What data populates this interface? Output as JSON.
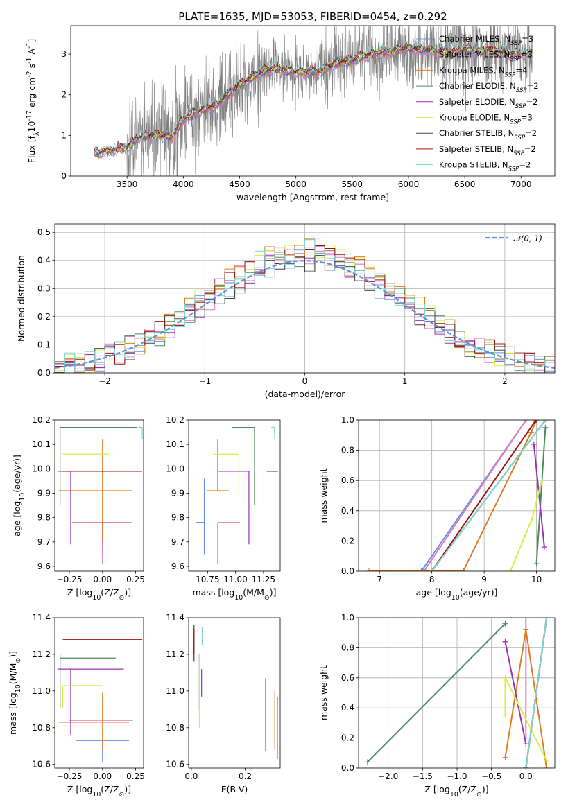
{
  "colors": {
    "chabrier_miles": "#6a8fe0",
    "salpeter_miles": "#e07bbf",
    "kroupa_miles": "#e07b20",
    "chabrier_elodie": "#4f8a5f",
    "salpeter_elodie": "#9b30b5",
    "kroupa_elodie": "#d4ee4a",
    "chabrier_stelib": "#444444",
    "salpeter_stelib": "#a01010",
    "kroupa_stelib": "#7fd6d6",
    "data": "#808080"
  },
  "chart_data": [
    {
      "id": "spectrum",
      "type": "line",
      "title": "PLATE=1635, MJD=53053, FIBERID=0454, z=0.292",
      "xlabel": "wavelength [Angstrom, rest frame]",
      "ylabel": "Flux [f$_\\lambda$10$^{-17}$ erg cm$^{-2}$ s$^{-1}$ A$^{-1}$]",
      "xlim": [
        3000,
        7300
      ],
      "ylim": [
        0,
        3.7
      ],
      "xticks": [
        3500,
        4000,
        4500,
        5000,
        5500,
        6000,
        6500,
        7000
      ],
      "yticks": [
        0,
        1,
        2,
        3
      ],
      "legend_position": "top-right",
      "legend": [
        "Chabrier MILES, N_SSP=3",
        "Salpeter MILES, N_SSP=3",
        "Kroupa MILES, N_SSP=4",
        "Chabrier ELODIE, N_SSP=2",
        "Salpeter ELODIE, N_SSP=2",
        "Kroupa ELODIE, N_SSP=3",
        "Chabrier STELIB, N_SSP=2",
        "Salpeter STELIB, N_SSP=2",
        "Kroupa STELIB, N_SSP=2"
      ],
      "continuum": {
        "x": [
          3200,
          3400,
          3500,
          3600,
          3700,
          3800,
          3900,
          4000,
          4100,
          4200,
          4300,
          4400,
          4500,
          4600,
          4700,
          4800,
          4900,
          5000,
          5100,
          5200,
          5300,
          5400,
          5500,
          5600,
          5700,
          5800,
          5900,
          6000,
          6100,
          6200,
          6300,
          6400,
          6500,
          6600,
          6700,
          6800,
          6900,
          7000,
          7100
        ],
        "y": [
          0.55,
          0.65,
          0.7,
          0.95,
          1.0,
          1.0,
          0.95,
          1.4,
          1.55,
          1.65,
          1.75,
          2.0,
          2.25,
          2.4,
          2.55,
          2.65,
          2.6,
          2.55,
          2.55,
          2.55,
          2.7,
          2.8,
          2.85,
          2.95,
          3.0,
          3.05,
          3.1,
          3.15,
          3.1,
          3.1,
          3.05,
          3.05,
          3.1,
          3.05,
          3.1,
          3.05,
          3.0,
          3.0,
          3.0
        ]
      }
    },
    {
      "id": "residuals",
      "type": "line",
      "xlabel": "(data-model)/error",
      "ylabel": "Normed distribution",
      "xlim": [
        -2.5,
        2.5
      ],
      "ylim": [
        0,
        0.53
      ],
      "xticks": [
        -2,
        -1,
        0,
        1,
        2
      ],
      "yticks": [
        0.0,
        0.1,
        0.2,
        0.3,
        0.4,
        0.5
      ],
      "grid": true,
      "legend_position": "top-right",
      "legend": [
        "$\\mathcal{N}(0,1)$"
      ],
      "gaussian": {
        "mean": 0,
        "sigma": 1
      }
    },
    {
      "id": "age_vs_Z",
      "type": "scatter",
      "xlabel": "Z [log$_{10}$(Z/Z$_\\odot$)]",
      "ylabel": "age  [log$_{10}$(age/yr)]",
      "xlim": [
        -0.36,
        0.31
      ],
      "ylim": [
        9.58,
        10.2
      ],
      "xticks": [
        -0.25,
        0.0,
        0.25
      ],
      "yticks": [
        9.6,
        9.7,
        9.8,
        9.9,
        10.0,
        10.1,
        10.2
      ],
      "errorbars": [
        {
          "model": "chabrier_miles",
          "x": 0.0,
          "y": 9.78,
          "xerr": [
            0.2,
            0.2
          ],
          "yerr": [
            0.13,
            0.0
          ]
        },
        {
          "model": "salpeter_miles",
          "x": 0.0,
          "y": 9.78,
          "xerr": [
            0.23,
            0.22
          ],
          "yerr": [
            0.17,
            0.0
          ]
        },
        {
          "model": "kroupa_miles",
          "x": 0.0,
          "y": 9.91,
          "xerr": [
            0.33,
            0.22
          ],
          "yerr": [
            0.2,
            0.21
          ]
        },
        {
          "model": "chabrier_elodie",
          "x": -0.32,
          "y": 10.17,
          "xerr": [
            0.0,
            0.58
          ],
          "yerr": [
            0.32,
            0.0
          ]
        },
        {
          "model": "salpeter_elodie",
          "x": -0.24,
          "y": 9.99,
          "xerr": [
            0.1,
            0.45
          ],
          "yerr": [
            0.3,
            0.0
          ]
        },
        {
          "model": "kroupa_elodie",
          "x": 0.0,
          "y": 10.06,
          "xerr": [
            0.3,
            0.05
          ],
          "yerr": [
            0.0,
            0.0
          ]
        },
        {
          "model": "chabrier_stelib",
          "x": 0.3,
          "y": 10.17,
          "xerr": [
            0.02,
            0.0
          ],
          "yerr": [
            0.0,
            0.0
          ]
        },
        {
          "model": "salpeter_stelib",
          "x": 0.0,
          "y": 9.99,
          "xerr": [
            0.3,
            0.3
          ],
          "yerr": [
            0.0,
            0.0
          ]
        },
        {
          "model": "kroupa_stelib",
          "x": 0.3,
          "y": 10.17,
          "xerr": [
            0.03,
            0.0
          ],
          "yerr": [
            0.05,
            0.0
          ]
        }
      ]
    },
    {
      "id": "age_vs_mass",
      "type": "scatter",
      "xlabel": "mass [log$_{10}$(M/M$_\\odot$)]",
      "ylabel": "",
      "xlim": [
        10.58,
        11.4
      ],
      "ylim": [
        9.58,
        10.2
      ],
      "xticks": [
        10.75,
        11.0,
        11.25
      ],
      "yticks": [
        9.6,
        9.7,
        9.8,
        9.9,
        10.0,
        10.1,
        10.2
      ],
      "errorbars": [
        {
          "model": "chabrier_miles",
          "x": 10.72,
          "y": 9.78,
          "xerr": [
            0.07,
            0.0
          ],
          "yerr": [
            0.13,
            0.18
          ]
        },
        {
          "model": "salpeter_miles",
          "x": 10.84,
          "y": 9.78,
          "xerr": [
            0.0,
            0.2
          ],
          "yerr": [
            0.17,
            0.0
          ]
        },
        {
          "model": "kroupa_miles",
          "x": 10.84,
          "y": 9.91,
          "xerr": [
            0.1,
            0.1
          ],
          "yerr": [
            0.0,
            0.21
          ]
        },
        {
          "model": "chabrier_elodie",
          "x": 11.17,
          "y": 10.17,
          "xerr": [
            0.2,
            0.0
          ],
          "yerr": [
            0.32,
            0.0
          ]
        },
        {
          "model": "salpeter_elodie",
          "x": 11.12,
          "y": 9.99,
          "xerr": [
            0.27,
            0.0
          ],
          "yerr": [
            0.3,
            0.0
          ]
        },
        {
          "model": "kroupa_elodie",
          "x": 11.03,
          "y": 10.06,
          "xerr": [
            0.22,
            0.0
          ],
          "yerr": [
            0.16,
            0.0
          ]
        },
        {
          "model": "chabrier_stelib",
          "x": 11.35,
          "y": 10.17,
          "xerr": [
            0.02,
            0.0
          ],
          "yerr": [
            0.02,
            0.0
          ]
        },
        {
          "model": "salpeter_stelib",
          "x": 11.28,
          "y": 9.99,
          "xerr": [
            0.0,
            0.1
          ],
          "yerr": [
            0.0,
            0.0
          ]
        },
        {
          "model": "kroupa_stelib",
          "x": 11.35,
          "y": 10.17,
          "xerr": [
            0.03,
            0.0
          ],
          "yerr": [
            0.05,
            0.0
          ]
        }
      ]
    },
    {
      "id": "weight_vs_age",
      "type": "line",
      "xlabel": "age  [log$_{10}$(age/yr)]",
      "ylabel": "mass weight",
      "xlim": [
        6.6,
        10.35
      ],
      "ylim": [
        0,
        1.0
      ],
      "xticks": [
        7,
        8,
        9,
        10
      ],
      "yticks": [
        0.0,
        0.2,
        0.4,
        0.6,
        0.8,
        1.0
      ],
      "grid": true,
      "series": [
        {
          "model": "chabrier_miles",
          "x": [
            7.8,
            9.8
          ],
          "y": [
            0.0,
            1.0
          ]
        },
        {
          "model": "salpeter_miles",
          "x": [
            7.85,
            9.8
          ],
          "y": [
            0.0,
            1.0
          ]
        },
        {
          "model": "kroupa_miles",
          "x": [
            6.8,
            8.6,
            9.9,
            10.0
          ],
          "y": [
            0.0,
            0.0,
            0.92,
            1.0
          ]
        },
        {
          "model": "chabrier_elodie",
          "x": [
            10.0,
            10.17
          ],
          "y": [
            0.05,
            0.95
          ]
        },
        {
          "model": "salpeter_elodie",
          "x": [
            9.95,
            10.15
          ],
          "y": [
            0.84,
            0.16
          ]
        },
        {
          "model": "kroupa_elodie",
          "x": [
            9.5,
            9.92,
            10.1
          ],
          "y": [
            0.0,
            0.35,
            0.6
          ]
        },
        {
          "model": "chabrier_stelib",
          "x": [
            8.0,
            10.17
          ],
          "y": [
            0.0,
            1.0
          ]
        },
        {
          "model": "salpeter_stelib",
          "x": [
            8.0,
            9.99
          ],
          "y": [
            0.0,
            1.0
          ]
        },
        {
          "model": "kroupa_stelib",
          "x": [
            8.0,
            10.17
          ],
          "y": [
            0.0,
            1.0
          ]
        }
      ]
    },
    {
      "id": "mass_vs_Z",
      "type": "scatter",
      "xlabel": "Z [log$_{10}$(Z/Z$_\\odot$)]",
      "ylabel": "mass [log$_{10}$(M/M$_\\odot$)]",
      "xlim": [
        -0.36,
        0.31
      ],
      "ylim": [
        10.58,
        11.4
      ],
      "xticks": [
        -0.25,
        0.0,
        0.25
      ],
      "yticks": [
        10.6,
        10.8,
        11.0,
        11.2,
        11.4
      ],
      "errorbars": [
        {
          "model": "chabrier_miles",
          "x": 0.0,
          "y": 10.73,
          "xerr": [
            0.2,
            0.2
          ],
          "yerr": [
            0.12,
            0.0
          ]
        },
        {
          "model": "salpeter_miles",
          "x": 0.0,
          "y": 10.84,
          "xerr": [
            0.25,
            0.23
          ],
          "yerr": [
            0.0,
            0.0
          ]
        },
        {
          "model": "kroupa_miles",
          "x": 0.0,
          "y": 10.83,
          "xerr": [
            0.33,
            0.2
          ],
          "yerr": [
            0.15,
            0.16
          ]
        },
        {
          "model": "chabrier_elodie",
          "x": -0.32,
          "y": 11.18,
          "xerr": [
            0.0,
            0.42
          ],
          "yerr": [
            0.27,
            0.02
          ]
        },
        {
          "model": "salpeter_elodie",
          "x": -0.24,
          "y": 11.12,
          "xerr": [
            0.1,
            0.4
          ],
          "yerr": [
            0.36,
            0.0
          ]
        },
        {
          "model": "kroupa_elodie",
          "x": -0.3,
          "y": 11.03,
          "xerr": [
            0.0,
            0.3
          ],
          "yerr": [
            0.12,
            0.0
          ]
        },
        {
          "model": "chabrier_stelib",
          "x": 0.3,
          "y": 11.35,
          "xerr": [
            0.0,
            0.0
          ],
          "yerr": [
            0.0,
            0.0
          ]
        },
        {
          "model": "salpeter_stelib",
          "x": 0.0,
          "y": 11.28,
          "xerr": [
            0.3,
            0.3
          ],
          "yerr": [
            0.0,
            0.0
          ]
        },
        {
          "model": "kroupa_stelib",
          "x": 0.3,
          "y": 11.3,
          "xerr": [
            0.02,
            0.0
          ],
          "yerr": [
            0.0,
            0.0
          ]
        }
      ]
    },
    {
      "id": "mass_vs_ebv",
      "type": "scatter",
      "xlabel": "E(B-V)",
      "ylabel": "",
      "xlim": [
        -0.01,
        0.33
      ],
      "ylim": [
        10.58,
        11.4
      ],
      "xticks": [
        0.0,
        0.2
      ],
      "yticks": [
        10.6,
        10.8,
        11.0,
        11.2,
        11.4
      ],
      "errorbars": [
        {
          "model": "chabrier_miles",
          "x": 0.32,
          "y": 10.8,
          "xerr": [
            0,
            0
          ],
          "yerr": [
            0.17,
            0.17
          ]
        },
        {
          "model": "salpeter_miles",
          "x": 0.275,
          "y": 10.87,
          "xerr": [
            0,
            0
          ],
          "yerr": [
            0.2,
            0.2
          ]
        },
        {
          "model": "kroupa_miles",
          "x": 0.31,
          "y": 10.84,
          "xerr": [
            0,
            0
          ],
          "yerr": [
            0.16,
            0.16
          ]
        },
        {
          "model": "chabrier_elodie",
          "x": 0.025,
          "y": 11.05,
          "xerr": [
            0,
            0
          ],
          "yerr": [
            0.15,
            0.15
          ]
        },
        {
          "model": "salpeter_elodie",
          "x": 0.038,
          "y": 11.12,
          "xerr": [
            0,
            0
          ],
          "yerr": [
            0.15,
            0.0
          ]
        },
        {
          "model": "kroupa_elodie",
          "x": 0.03,
          "y": 11.0,
          "xerr": [
            0,
            0
          ],
          "yerr": [
            0.2,
            0.2
          ]
        },
        {
          "model": "chabrier_stelib",
          "x": 0.01,
          "y": 11.28,
          "xerr": [
            0,
            0
          ],
          "yerr": [
            0.08,
            0.08
          ]
        },
        {
          "model": "salpeter_stelib",
          "x": 0.01,
          "y": 11.25,
          "xerr": [
            0,
            0
          ],
          "yerr": [
            0.09,
            0.09
          ]
        },
        {
          "model": "kroupa_stelib",
          "x": 0.04,
          "y": 11.3,
          "xerr": [
            0,
            0
          ],
          "yerr": [
            0.05,
            0.05
          ]
        }
      ]
    },
    {
      "id": "weight_vs_Z",
      "type": "line",
      "xlabel": "Z [log$_{10}$(Z/Z$_\\odot$)]",
      "ylabel": "mass weight",
      "xlim": [
        -2.43,
        0.42
      ],
      "ylim": [
        0,
        1.0
      ],
      "xticks": [
        -2.0,
        -1.5,
        -1.0,
        -0.5,
        0.0
      ],
      "yticks": [
        0.0,
        0.2,
        0.4,
        0.6,
        0.8,
        1.0
      ],
      "grid": true,
      "series": [
        {
          "model": "chabrier_miles",
          "x": [
            0.0,
            0.3
          ],
          "y": [
            0.0,
            1.0
          ]
        },
        {
          "model": "salpeter_miles",
          "x": [
            0.0,
            0.0
          ],
          "y": [
            0.2,
            1.0
          ]
        },
        {
          "model": "kroupa_miles",
          "x": [
            -0.3,
            0.0,
            0.3
          ],
          "y": [
            0.07,
            0.92,
            0.0
          ]
        },
        {
          "model": "chabrier_elodie",
          "x": [
            -2.3,
            -0.3
          ],
          "y": [
            0.04,
            0.96
          ]
        },
        {
          "model": "salpeter_elodie",
          "x": [
            -0.3,
            0.0
          ],
          "y": [
            0.84,
            0.16
          ]
        },
        {
          "model": "kroupa_elodie",
          "x": [
            -0.3,
            -0.3,
            0.3
          ],
          "y": [
            0.35,
            0.6,
            0.05
          ]
        },
        {
          "model": "chabrier_stelib",
          "x": [
            0.0,
            0.3
          ],
          "y": [
            0.0,
            1.0
          ]
        },
        {
          "model": "salpeter_stelib",
          "x": [
            0.0,
            0.3
          ],
          "y": [
            0.0,
            1.0
          ]
        },
        {
          "model": "kroupa_stelib",
          "x": [
            0.0,
            0.3
          ],
          "y": [
            0.0,
            1.0
          ]
        }
      ]
    }
  ],
  "labels": {
    "title": "PLATE=1635, MJD=53053, FIBERID=0454, z=0.292",
    "spec_x": "wavelength [Angstrom, rest frame]",
    "hist_x": "(data-model)/error",
    "hist_y": "Normed distribution",
    "mass_weight": "mass weight",
    "ebv": "E(B-V)",
    "gauss_legend": "N(0,1)"
  }
}
